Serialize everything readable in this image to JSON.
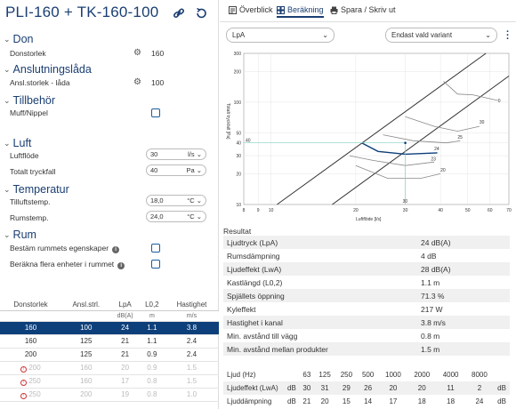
{
  "header": {
    "title": "PLI-160 + TK-160-100"
  },
  "sections": {
    "don": {
      "title": "Don",
      "size_label": "Donstorlek",
      "size_value": "160"
    },
    "box": {
      "title": "Anslutningslåda",
      "size_label": "Ansl.storlek - låda",
      "size_value": "100"
    },
    "acc": {
      "title": "Tillbehör",
      "item_label": "Muff/Nippel"
    },
    "air": {
      "title": "Luft",
      "flow_label": "Luftflöde",
      "flow_value": "30",
      "flow_unit": "l/s",
      "drop_label": "Totalt tryckfall",
      "drop_value": "40",
      "drop_unit": "Pa"
    },
    "temp": {
      "title": "Temperatur",
      "supply_label": "Tilluftstemp.",
      "supply_value": "18,0",
      "supply_unit": "°C",
      "room_label": "Rumstemp.",
      "room_value": "24,0",
      "room_unit": "°C"
    },
    "room": {
      "title": "Rum",
      "prop_label": "Bestäm rummets egenskaper",
      "calc_label": "Beräkna flera enheter i rummet"
    }
  },
  "variants": {
    "headers": [
      "Donstorlek",
      "Ansl.strl.",
      "LpA",
      "L0,2",
      "Hastighet"
    ],
    "units": [
      "",
      "",
      "dB(A)",
      "m",
      "m/s"
    ],
    "rows": [
      {
        "c": [
          "160",
          "100",
          "24",
          "1.1",
          "3.8"
        ],
        "state": "sel",
        "warn": false
      },
      {
        "c": [
          "160",
          "125",
          "21",
          "1.1",
          "2.4"
        ],
        "state": "",
        "warn": false
      },
      {
        "c": [
          "200",
          "125",
          "21",
          "0.9",
          "2.4"
        ],
        "state": "",
        "warn": false
      },
      {
        "c": [
          "200",
          "160",
          "20",
          "0.9",
          "1.5"
        ],
        "state": "dis",
        "warn": true
      },
      {
        "c": [
          "250",
          "160",
          "17",
          "0.8",
          "1.5"
        ],
        "state": "dis",
        "warn": true
      },
      {
        "c": [
          "250",
          "200",
          "19",
          "0.8",
          "1.0"
        ],
        "state": "dis",
        "warn": true
      }
    ]
  },
  "tabs": [
    "Överblick",
    "Beräkning",
    "Spara / Skriv ut"
  ],
  "dropdowns": {
    "left": "LpA",
    "right": "Endast vald variant"
  },
  "chart_data": {
    "type": "line",
    "xlabel": "Luftflöde [l/s]",
    "ylabel": "Totalt tryckfall [Pa]",
    "xticks": [
      "8",
      "9",
      "10",
      "20",
      "30",
      "40",
      "50",
      "60",
      "70"
    ],
    "yticks": [
      "300",
      "200",
      "100",
      "50",
      "40",
      "30",
      "20",
      "10"
    ],
    "operating_point": {
      "flow": 30,
      "pressure": 40
    },
    "curve_labels": [
      "0",
      "30",
      "25",
      "24",
      "23",
      "20"
    ]
  },
  "results": {
    "title": "Resultat",
    "rows": [
      {
        "label": "Ljudtryck (LpA)",
        "value": "24 dB(A)"
      },
      {
        "label": "Rumsdämpning",
        "value": "4 dB"
      },
      {
        "label": "Ljudeffekt (LwA)",
        "value": "28 dB(A)"
      },
      {
        "label": "Kastlängd (L0,2)",
        "value": "1.1 m"
      },
      {
        "label": "Spjällets öppning",
        "value": "71.3 %"
      },
      {
        "label": "Kyleffekt",
        "value": "217 W"
      },
      {
        "label": "Hastighet i kanal",
        "value": "3.8 m/s"
      },
      {
        "label": "Min. avstånd till vägg",
        "value": "0.8 m"
      },
      {
        "label": "Min. avstånd mellan produkter",
        "value": "1.5 m"
      }
    ]
  },
  "freq": {
    "header": [
      "Ljud (Hz)",
      "",
      "63",
      "125",
      "250",
      "500",
      "1000",
      "2000",
      "4000",
      "8000"
    ],
    "rows": [
      [
        "Ljudeffekt (LwA)",
        "dB",
        "30",
        "31",
        "29",
        "26",
        "20",
        "20",
        "11",
        "2",
        "dB"
      ],
      [
        "Ljuddämpning",
        "dB",
        "21",
        "20",
        "15",
        "14",
        "17",
        "18",
        "18",
        "24",
        "dB"
      ]
    ]
  }
}
